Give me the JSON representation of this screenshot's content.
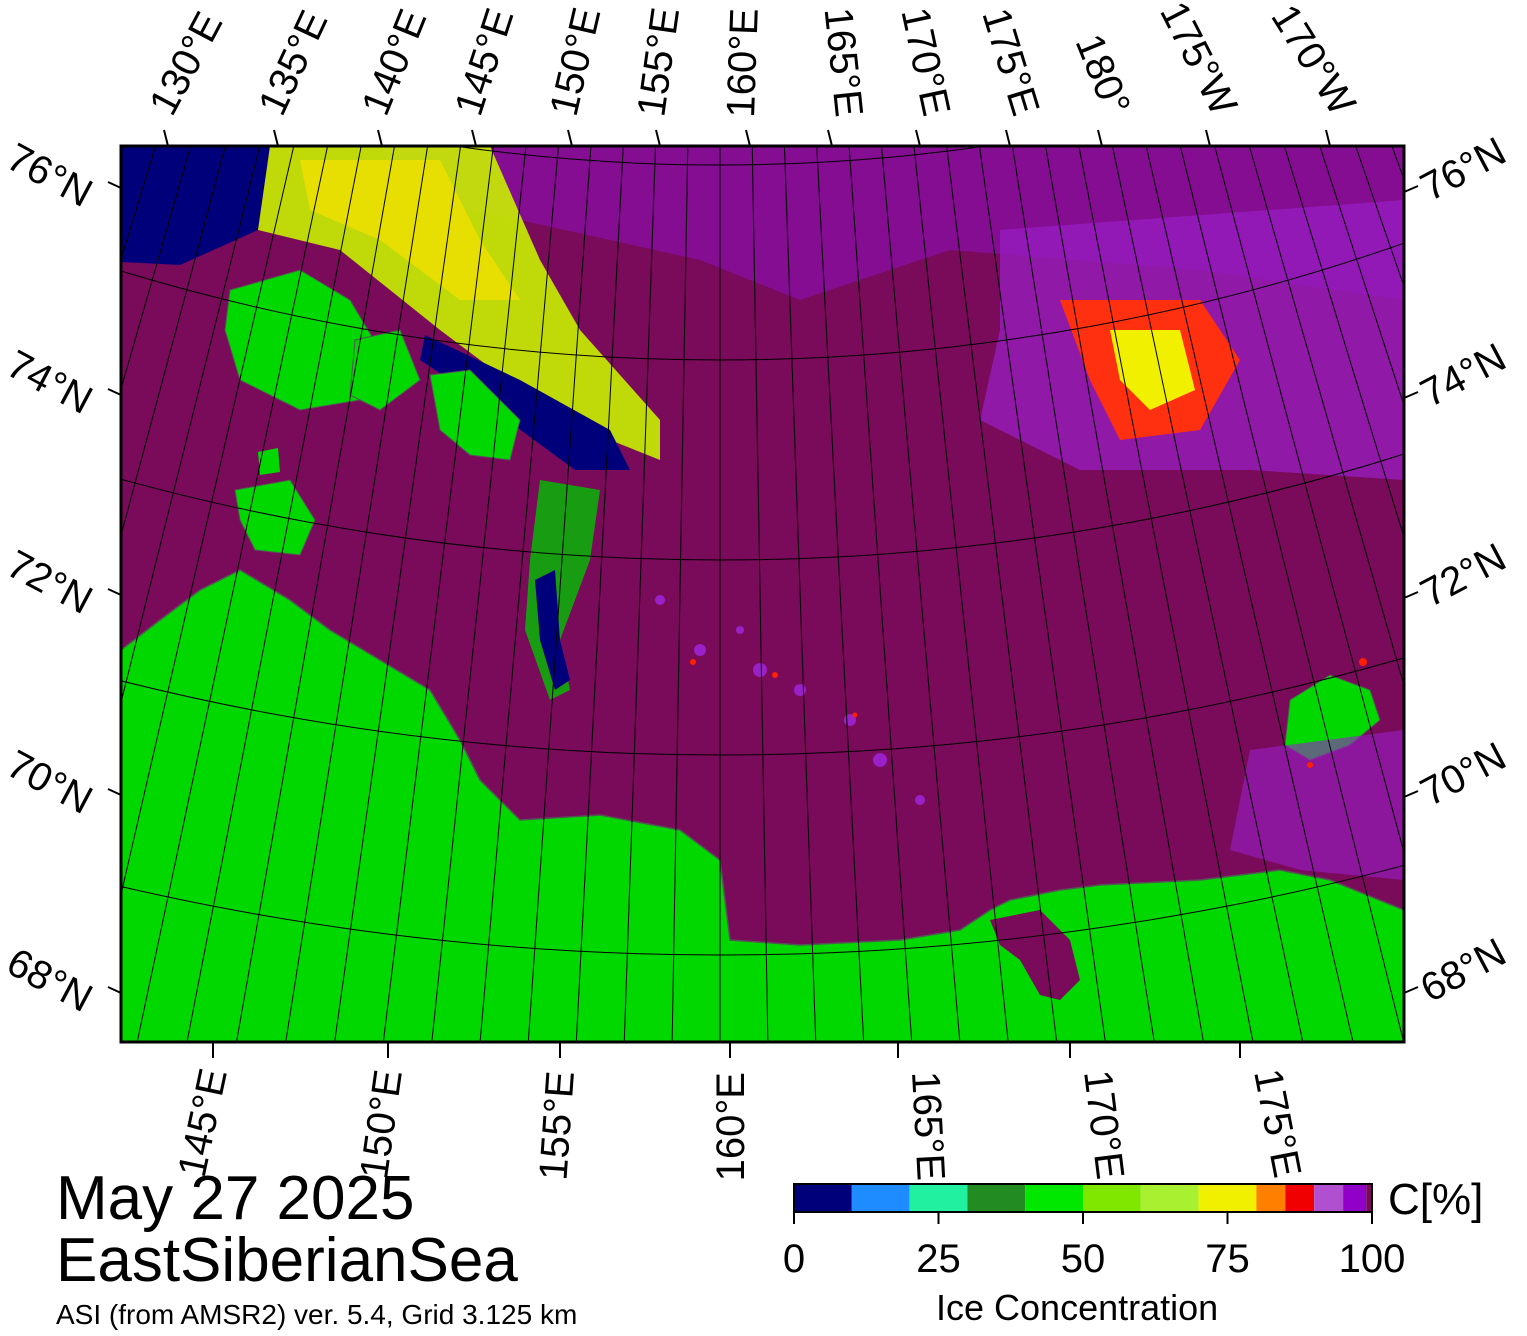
{
  "map": {
    "lat_labels": [
      {
        "text": "76°N"
      },
      {
        "text": "74°N"
      },
      {
        "text": "72°N"
      },
      {
        "text": "70°N"
      },
      {
        "text": "68°N"
      }
    ],
    "lon_labels_top": [
      "130°E",
      "135°E",
      "140°E",
      "145°E",
      "150°E",
      "155°E",
      "160°E",
      "165°E",
      "170°E",
      "175°E",
      "180°",
      "175°W",
      "170°W"
    ],
    "lon_labels_bottom": [
      "145°E",
      "150°E",
      "155°E",
      "160°E",
      "165°E",
      "170°E",
      "175°E"
    ],
    "colors": {
      "ocean_ice_free": "#7a0a5a",
      "land": "#00d800",
      "frame": "#000000",
      "graticule": "#000000",
      "low_ice": "#00007a",
      "high_ice": "#a8f000"
    }
  },
  "caption": {
    "date": "May 27 2025",
    "region": "EastSiberianSea",
    "product": "ASI (from AMSR2) ver. 5.4,  Grid 3.125 km"
  },
  "colorbar": {
    "title": "Ice Concentration",
    "unit": "C[%]",
    "ticks": [
      "0",
      "25",
      "50",
      "75",
      "100"
    ],
    "colors": [
      "#00007a",
      "#1e8cff",
      "#20f0a0",
      "#228b22",
      "#00e800",
      "#80e800",
      "#a8f030",
      "#f0f000",
      "#ff8000",
      "#f00000",
      "#b050d0",
      "#9000c8",
      "#7a0a5a"
    ]
  }
}
